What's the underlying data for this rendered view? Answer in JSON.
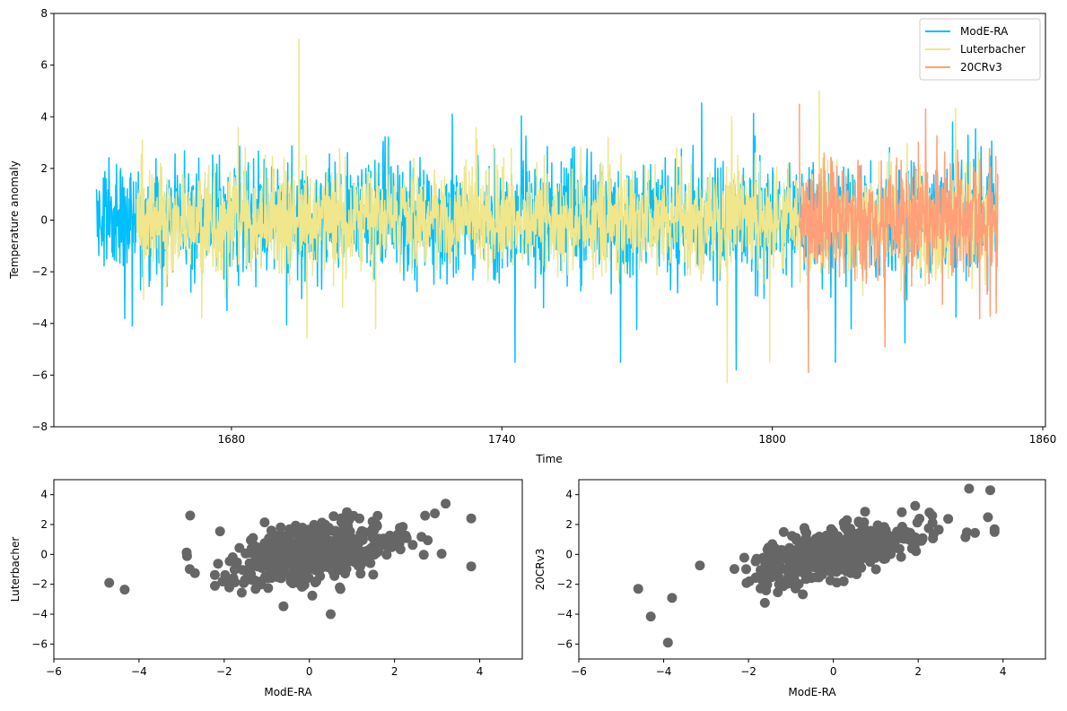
{
  "chart_data": [
    {
      "type": "line",
      "title": "",
      "xlabel": "Time",
      "ylabel": "Temperature anomaly",
      "xlim": [
        1640.6,
        1860.6
      ],
      "ylim": [
        -8,
        8
      ],
      "xticks": [
        "1680",
        "1740",
        "1800",
        "1860"
      ],
      "xtick_values": [
        1680,
        1740,
        1800,
        1860
      ],
      "yticks": [
        "8",
        "6",
        "4",
        "2",
        "0",
        "−2",
        "−4",
        "−6",
        "−8"
      ],
      "ytick_values": [
        8,
        6,
        4,
        2,
        0,
        -2,
        -4,
        -6,
        -8
      ],
      "legend": {
        "placement": "top-right",
        "entries": [
          "ModE-RA",
          "Luterbacher",
          "20CRv3"
        ]
      },
      "series": [
        {
          "name": "ModE-RA",
          "color": "#00bfff",
          "start": 1650,
          "end": 1850,
          "resolution": "monthly",
          "std_approx": 1.3,
          "seed": 11,
          "notable": [
            {
              "x": 1658,
              "y": -4.1
            },
            {
              "x": 1729,
              "y": 4.1
            },
            {
              "x": 1792,
              "y": -5.8
            },
            {
              "x": 1840,
              "y": 3.8
            }
          ]
        },
        {
          "name": "Luterbacher",
          "color": "#f0e68c",
          "start": 1659,
          "end": 1850,
          "resolution": "monthly",
          "std_approx": 1.2,
          "seed": 23,
          "notable": [
            {
              "x": 1695,
              "y": 7.0
            },
            {
              "x": 1712,
              "y": -4.2
            },
            {
              "x": 1790,
              "y": -6.3
            },
            {
              "x": 1791,
              "y": 4.0
            }
          ]
        },
        {
          "name": "20CRv3",
          "color": "#ffa07a",
          "start": 1806,
          "end": 1850,
          "resolution": "monthly",
          "std_approx": 1.4,
          "seed": 37,
          "notable": [
            {
              "x": 1806,
              "y": 4.5
            },
            {
              "x": 1808,
              "y": -5.9
            },
            {
              "x": 1825,
              "y": -4.9
            },
            {
              "x": 1834,
              "y": 4.3
            }
          ]
        }
      ]
    },
    {
      "type": "scatter",
      "xlabel": "ModE-RA",
      "ylabel": "Luterbacher",
      "xlim": [
        -6,
        5
      ],
      "ylim": [
        -7,
        5
      ],
      "xticks": [
        "−6",
        "−4",
        "−2",
        "0",
        "2",
        "4"
      ],
      "xtick_values": [
        -6,
        -4,
        -2,
        0,
        2,
        4
      ],
      "yticks": [
        "4",
        "2",
        "0",
        "−2",
        "−4",
        "−6"
      ],
      "ytick_values": [
        4,
        2,
        0,
        -2,
        -4,
        -6
      ],
      "color": "#666666",
      "n_points_approx": 500,
      "correlation_approx": 0.4,
      "seed": 5,
      "notable": [
        {
          "x": -4.7,
          "y": -1.9
        },
        {
          "x": -2.8,
          "y": 2.6
        },
        {
          "x": 3.2,
          "y": 3.4
        },
        {
          "x": 3.8,
          "y": -0.8
        },
        {
          "x": 0.5,
          "y": -4.0
        }
      ]
    },
    {
      "type": "scatter",
      "xlabel": "ModE-RA",
      "ylabel": "20CRv3",
      "xlim": [
        -6,
        5
      ],
      "ylim": [
        -7,
        5
      ],
      "xticks": [
        "−6",
        "−4",
        "−2",
        "0",
        "2",
        "4"
      ],
      "xtick_values": [
        -6,
        -4,
        -2,
        0,
        2,
        4
      ],
      "yticks": [
        "4",
        "2",
        "0",
        "−2",
        "−4",
        "−6"
      ],
      "ytick_values": [
        4,
        2,
        0,
        -2,
        -4,
        -6
      ],
      "color": "#666666",
      "n_points_approx": 500,
      "correlation_approx": 0.65,
      "seed": 9,
      "notable": [
        {
          "x": -3.9,
          "y": -5.9
        },
        {
          "x": -4.6,
          "y": -2.3
        },
        {
          "x": 3.2,
          "y": 4.4
        },
        {
          "x": 3.7,
          "y": 4.3
        },
        {
          "x": 3.8,
          "y": 1.5
        }
      ]
    }
  ]
}
